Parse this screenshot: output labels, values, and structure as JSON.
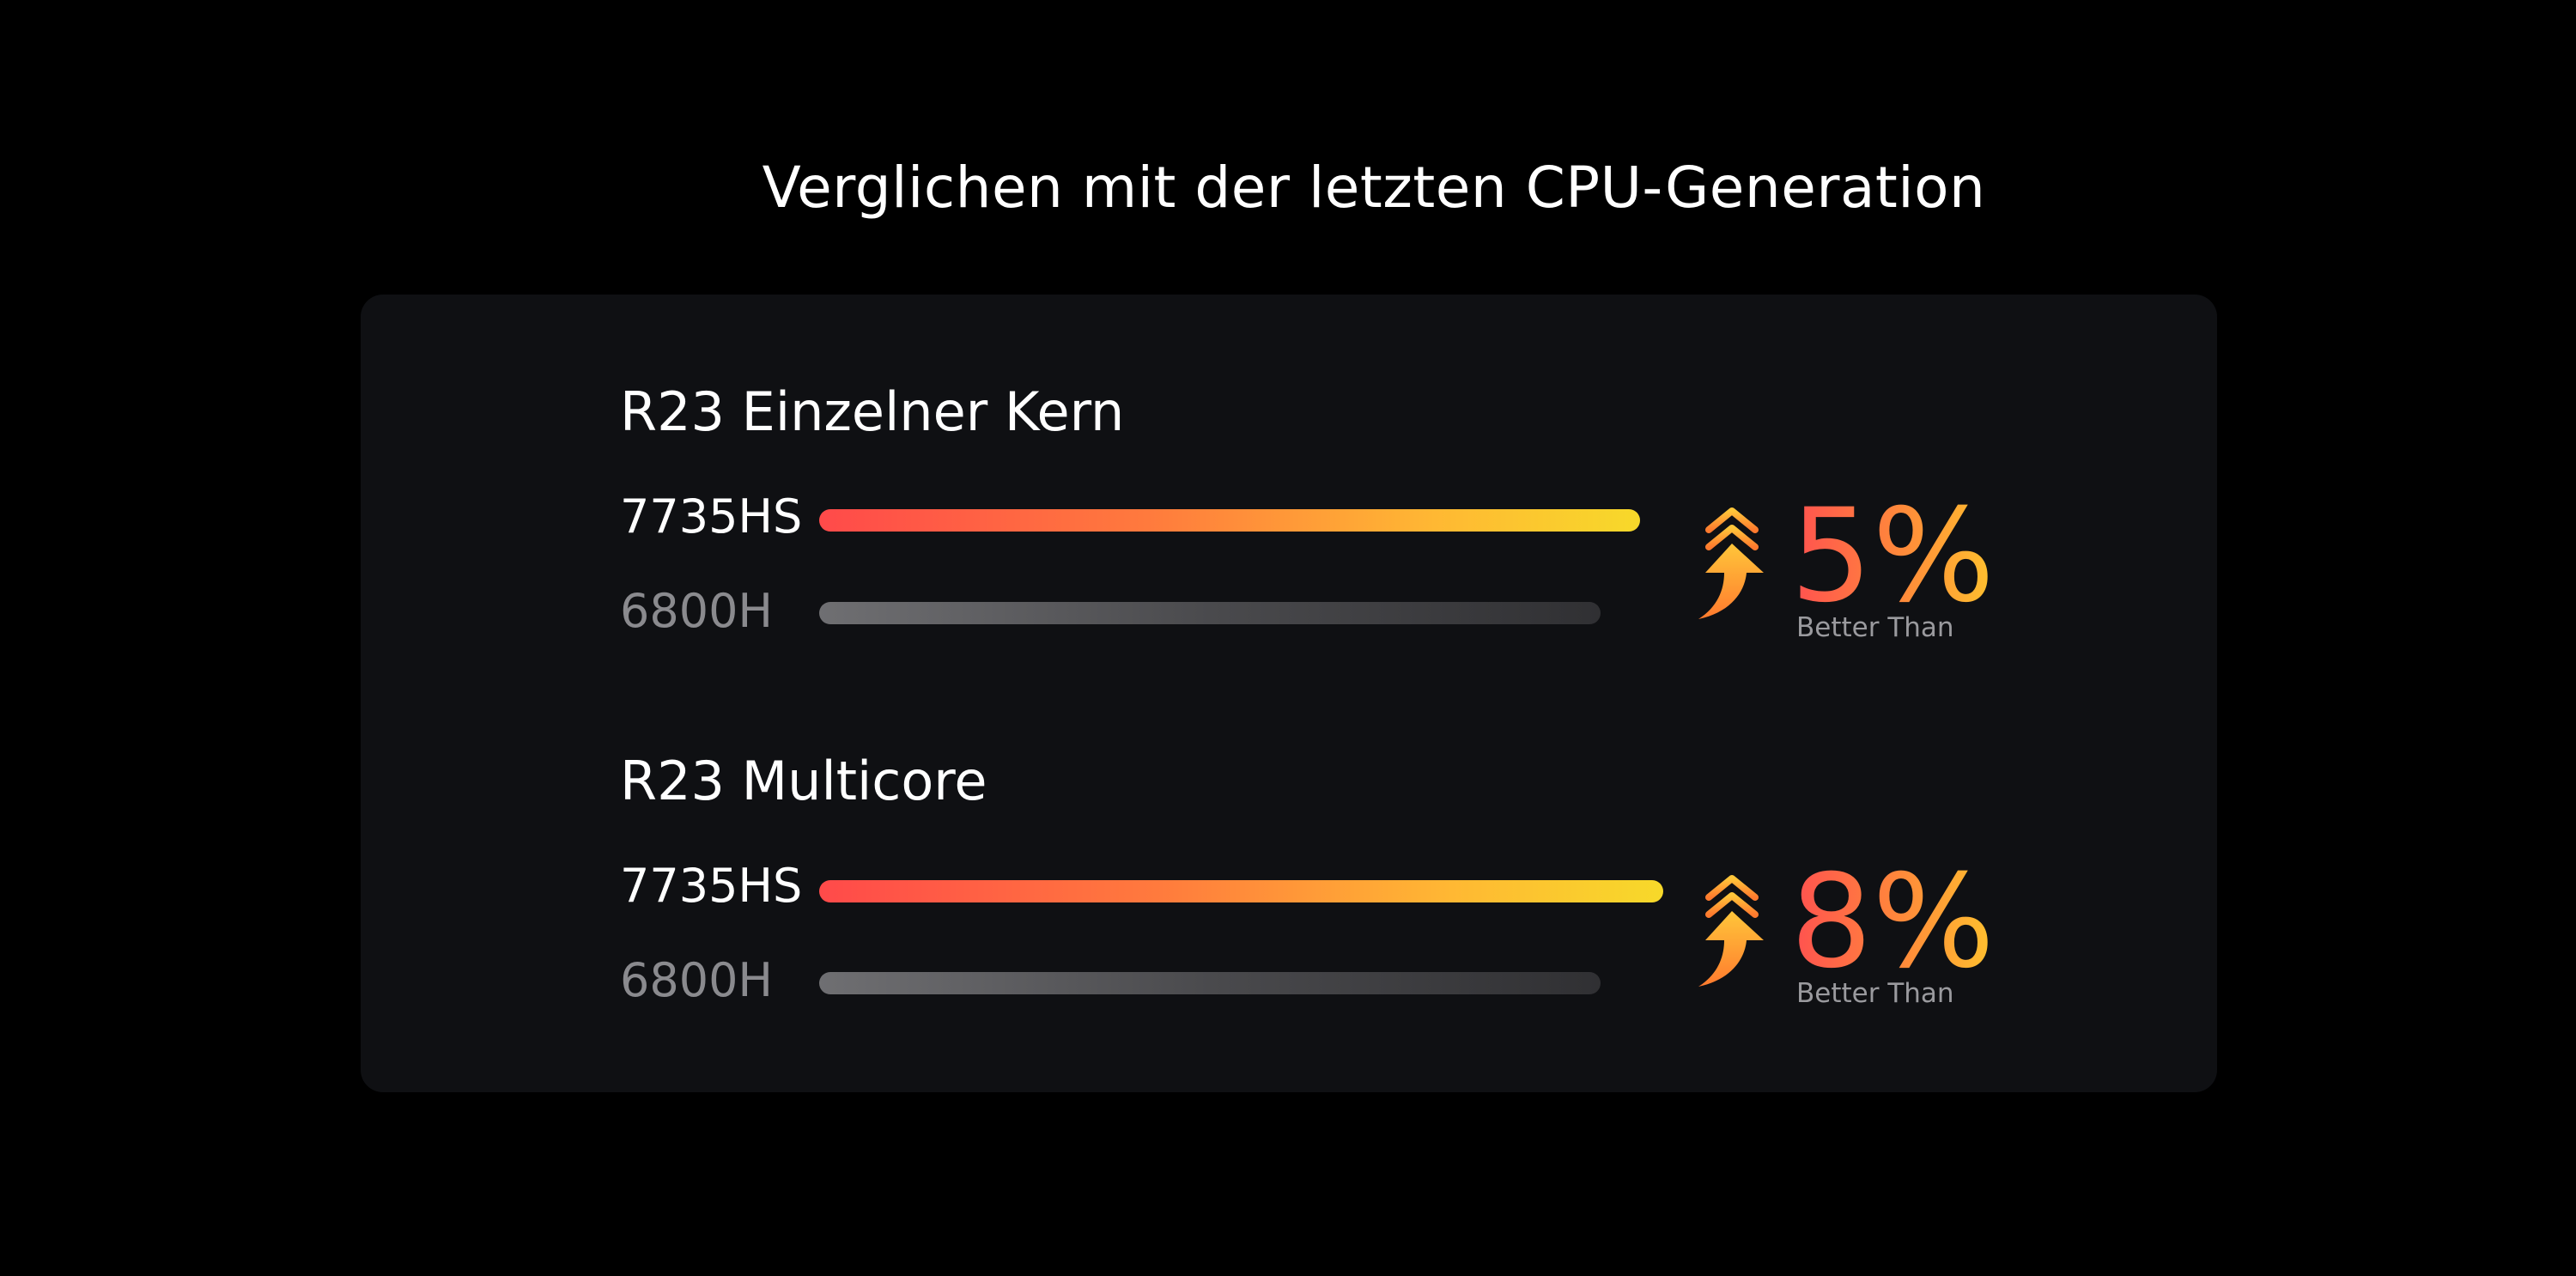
{
  "title": "Verglichen mit der letzten CPU-Generation",
  "colors": {
    "background": "#000000",
    "panel": "#0f1013",
    "new_bar_start": "#ff4a4a",
    "new_bar_end": "#f7d92a",
    "old_bar_start": "#6f6f72",
    "old_bar_end": "#303033"
  },
  "chart_data": {
    "type": "bar",
    "orientation": "horizontal",
    "series_labels": [
      "7735HS",
      "6800H"
    ],
    "benchmarks": [
      {
        "title": "R23 Einzelner Kern",
        "bars": [
          {
            "label": "7735HS",
            "value": 1.05
          },
          {
            "label": "6800H",
            "value": 1.0
          }
        ],
        "improvement": "5%",
        "caption": "Better Than",
        "icon": "double-chevron-up-arrow-icon"
      },
      {
        "title": "R23 Multicore",
        "bars": [
          {
            "label": "7735HS",
            "value": 1.08
          },
          {
            "label": "6800H",
            "value": 1.0
          }
        ],
        "improvement": "8%",
        "caption": "Better Than",
        "icon": "double-chevron-up-arrow-icon"
      }
    ]
  }
}
